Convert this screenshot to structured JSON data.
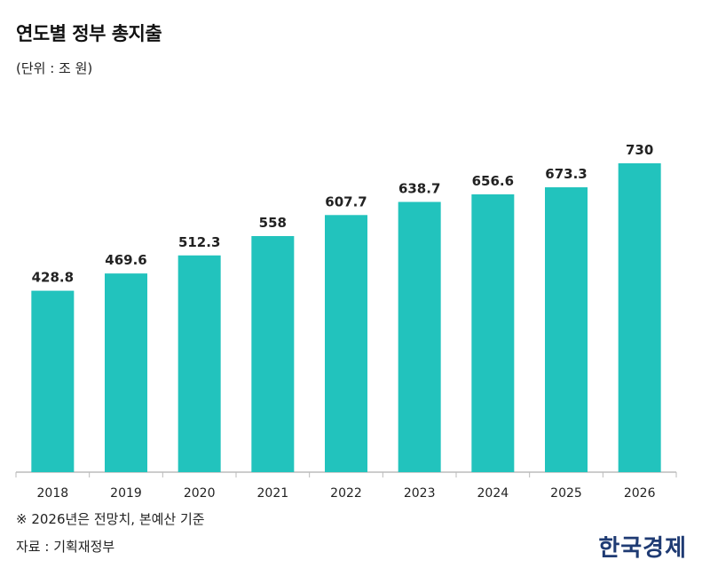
{
  "chart_data": {
    "type": "bar",
    "title": "연도별 정부 총지출",
    "unit_label": "(단위 : 조 원)",
    "categories": [
      "2018",
      "2019",
      "2020",
      "2021",
      "2022",
      "2023",
      "2024",
      "2025",
      "2026"
    ],
    "values": [
      428.8,
      469.6,
      512.3,
      558,
      607.7,
      638.7,
      656.6,
      673.3,
      730
    ],
    "value_labels": [
      "428.8",
      "469.6",
      "512.3",
      "558",
      "607.7",
      "638.7",
      "656.6",
      "673.3",
      "730"
    ],
    "xlabel": "",
    "ylabel": "",
    "ylim": [
      0,
      800
    ],
    "grid": false,
    "legend": "none",
    "bar_color": "#22c3bd",
    "axis_color": "#bbbbbb"
  },
  "footer": {
    "note": "※ 2026년은 전망치, 본예산 기준",
    "source": "자료 : 기획재정부",
    "logo_text": "한국경제"
  }
}
